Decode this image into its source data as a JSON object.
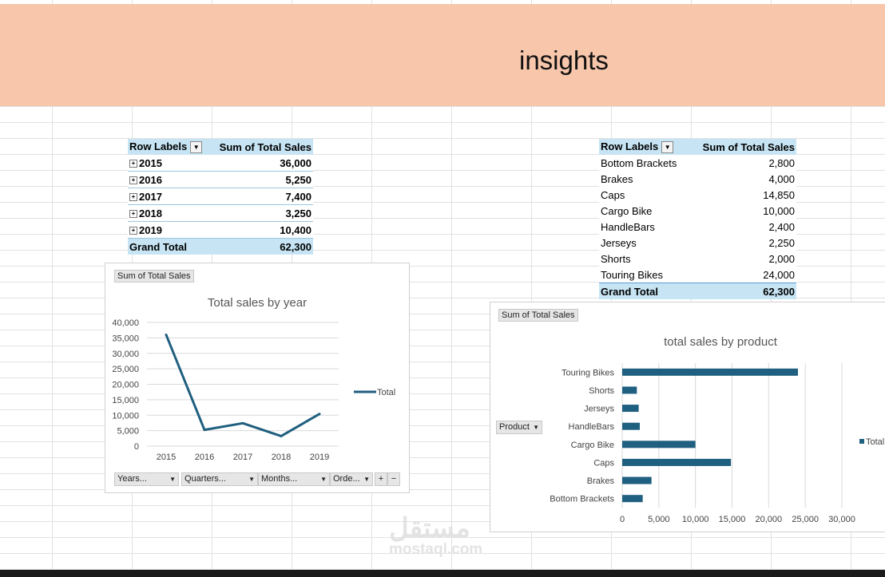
{
  "banner": {
    "title": "insights"
  },
  "pivot_year": {
    "header": [
      "Row Labels",
      "Sum of Total Sales"
    ],
    "rows": [
      {
        "label": "2015",
        "value": "36,000"
      },
      {
        "label": "2016",
        "value": "5,250"
      },
      {
        "label": "2017",
        "value": "7,400"
      },
      {
        "label": "2018",
        "value": "3,250"
      },
      {
        "label": "2019",
        "value": "10,400"
      }
    ],
    "total": {
      "label": "Grand Total",
      "value": "62,300"
    }
  },
  "pivot_product": {
    "header": [
      "Row Labels",
      "Sum of Total Sales"
    ],
    "rows": [
      {
        "label": "Bottom Brackets",
        "value": "2,800"
      },
      {
        "label": "Brakes",
        "value": "4,000"
      },
      {
        "label": "Caps",
        "value": "14,850"
      },
      {
        "label": "Cargo Bike",
        "value": "10,000"
      },
      {
        "label": "HandleBars",
        "value": "2,400"
      },
      {
        "label": "Jerseys",
        "value": "2,250"
      },
      {
        "label": "Shorts",
        "value": "2,000"
      },
      {
        "label": "Touring Bikes",
        "value": "24,000"
      }
    ],
    "total": {
      "label": "Grand Total",
      "value": "62,300"
    }
  },
  "line_chart_ui": {
    "value_field": "Sum of Total Sales",
    "filters": [
      "Years...",
      "Quarters...",
      "Months...",
      "Orde..."
    ],
    "zoom_in": "+",
    "zoom_out": "−"
  },
  "bar_chart_ui": {
    "value_field": "Sum of Total Sales",
    "axis_field": "Product"
  },
  "chart_data": [
    {
      "type": "line",
      "title": "Total sales by year",
      "categories": [
        "2015",
        "2016",
        "2017",
        "2018",
        "2019"
      ],
      "series": [
        {
          "name": "Total",
          "values": [
            36000,
            5250,
            7400,
            3250,
            10400
          ]
        }
      ],
      "ylim": [
        0,
        40000
      ],
      "yticks": [
        0,
        5000,
        10000,
        15000,
        20000,
        25000,
        30000,
        35000,
        40000
      ],
      "ytick_labels": [
        "0",
        "5,000",
        "10,000",
        "15,000",
        "20,000",
        "25,000",
        "30,000",
        "35,000",
        "40,000"
      ],
      "grid": true,
      "legend": "right",
      "color": "#1f5f7f"
    },
    {
      "type": "bar",
      "orientation": "horizontal",
      "title": "total sales by product",
      "categories": [
        "Bottom Brackets",
        "Brakes",
        "Caps",
        "Cargo Bike",
        "HandleBars",
        "Jerseys",
        "Shorts",
        "Touring Bikes"
      ],
      "series": [
        {
          "name": "Total",
          "values": [
            2800,
            4000,
            14850,
            10000,
            2400,
            2250,
            2000,
            24000
          ]
        }
      ],
      "xlim": [
        0,
        30000
      ],
      "xticks": [
        0,
        5000,
        10000,
        15000,
        20000,
        25000,
        30000
      ],
      "xtick_labels": [
        "0",
        "5,000",
        "10,000",
        "15,000",
        "20,000",
        "25,000",
        "30,000"
      ],
      "grid": true,
      "legend": "right",
      "color": "#1f5f7f"
    }
  ],
  "watermark": {
    "arabic": "مستقل",
    "latin": "mostaql.com"
  }
}
